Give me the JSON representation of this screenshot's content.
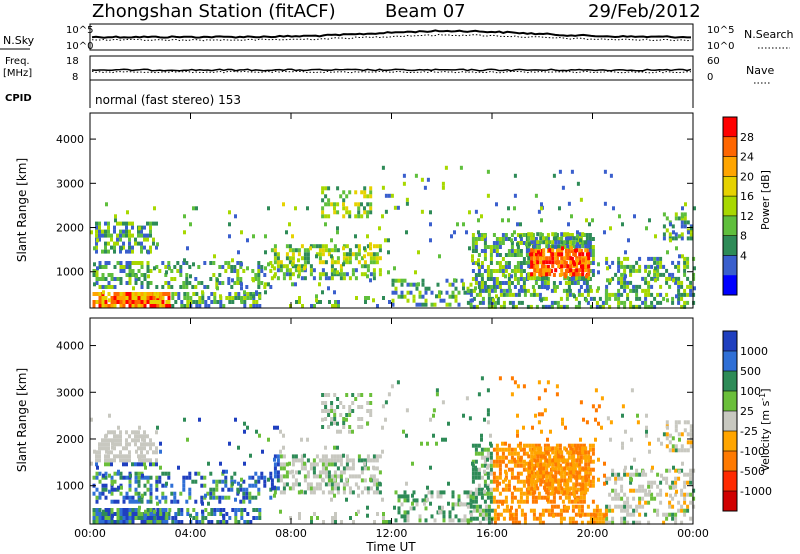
{
  "header": {
    "title": "Zhongshan Station (fitACF)",
    "beam": "Beam 07",
    "date": "29/Feb/2012"
  },
  "panels": {
    "nsky_label": "N.Sky",
    "nsky_ticks": [
      "10^5",
      "10^0"
    ],
    "nsearch_label": "N.Search",
    "nsearch_ticks": [
      "10^5",
      "10^0"
    ],
    "freq_label": "Freq.",
    "freq_unit": "[MHz]",
    "freq_ticks": [
      "18",
      "8"
    ],
    "nave_label": "Nave",
    "nave_ticks": [
      "60",
      "0"
    ],
    "cpid_label": "CPID",
    "cpid_text": "normal (fast stereo) 153"
  },
  "chart_data": [
    {
      "type": "heatmap",
      "name": "power",
      "ylabel": "Slant Range [km]",
      "y_ticks": [
        "4000",
        "3000",
        "2000",
        "1000"
      ],
      "ylim": [
        180,
        4590
      ],
      "colorbar_label": "Power [dB]",
      "colorbar_ticks": [
        "28",
        "24",
        "20",
        "16",
        "12",
        "8",
        "4"
      ],
      "colorbar_colors": [
        "#ff0000",
        "#ff6600",
        "#ffa500",
        "#e6d200",
        "#a8d800",
        "#5fbf3c",
        "#2e8b57",
        "#3a5fcd",
        "#0000ff"
      ]
    },
    {
      "type": "heatmap",
      "name": "velocity",
      "ylabel": "Slant Range [km]",
      "y_ticks": [
        "4000",
        "3000",
        "2000",
        "1000"
      ],
      "ylim": [
        180,
        4590
      ],
      "colorbar_label": "Velocity [m s",
      "colorbar_unit_sup": "-1",
      "colorbar_ticks": [
        "1000",
        "500",
        "100",
        "25",
        "-25",
        "-100",
        "-500",
        "-1000"
      ],
      "colorbar_colors": [
        "#1f3fbf",
        "#2f6fd6",
        "#2e8b57",
        "#6bbf3a",
        "#c8c8c0",
        "#ffa500",
        "#ff7a00",
        "#ff2a00",
        "#d00000"
      ]
    }
  ],
  "x_axis": {
    "ticks": [
      "00:00",
      "04:00",
      "08:00",
      "12:00",
      "16:00",
      "20:00",
      "00:00"
    ],
    "label": "Time UT"
  }
}
